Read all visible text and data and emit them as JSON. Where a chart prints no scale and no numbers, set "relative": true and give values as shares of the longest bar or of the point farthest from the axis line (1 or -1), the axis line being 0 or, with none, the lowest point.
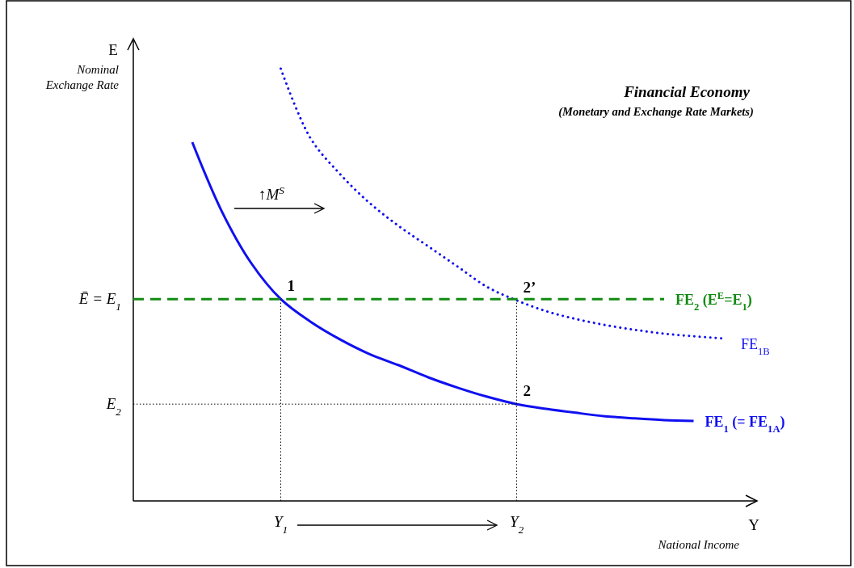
{
  "chart_data": {
    "type": "line",
    "relative": true,
    "title": "Financial Economy",
    "subtitle": "(Monetary and Exchange Rate Markets)",
    "xlabel": "Y",
    "ylabel": "E",
    "tick_labels": "x",
    "legend": false,
    "categories": [
      null,
      null,
      null,
      null,
      null,
      "Y$_{1}$",
      null,
      null,
      null,
      null,
      null,
      null,
      null,
      "Y$_{2}$",
      null,
      null,
      null,
      null,
      null,
      null,
      null,
      null
    ],
    "series": [
      {
        "name": "FE$_{1}$ (= FE$_{1A}$)",
        "color": "#1010f0",
        "line_style": "solid",
        "values": [
          null,
          null,
          0.83,
          0.67,
          0.55,
          0.467,
          0.415,
          0.374,
          0.34,
          0.314,
          0.286,
          0.262,
          0.241,
          0.224,
          0.213,
          0.204,
          0.196,
          0.191,
          0.187,
          0.185,
          null,
          null
        ]
      },
      {
        "name": "FE$_{1B}$",
        "color": "#1010f0",
        "line_style": "dotted",
        "values": [
          null,
          null,
          null,
          null,
          null,
          1.0,
          0.84,
          0.757,
          0.69,
          0.636,
          0.589,
          0.542,
          0.495,
          0.464,
          0.439,
          0.421,
          0.407,
          0.396,
          0.387,
          0.381,
          0.376,
          null
        ]
      },
      {
        "name": "FE$_{2}$ (E$^{E}$=E$_{1}$)",
        "color": "#138a13",
        "line_style": "dashed",
        "values": [
          0.467,
          0.467,
          0.467,
          0.467,
          0.467,
          0.467,
          0.467,
          0.467,
          0.467,
          0.467,
          0.467,
          0.467,
          0.467,
          0.467,
          0.467,
          0.467,
          0.467,
          0.467,
          0.467,
          null,
          null,
          null
        ]
      },
      {
        "color": "#000000",
        "line_style": "dotted",
        "x": [
          "Y$_{1}$",
          "Y$_{1}$"
        ],
        "values": [
          0,
          0.467
        ]
      },
      {
        "color": "#000000",
        "line_style": "dotted",
        "x": [
          "Y$_{2}$",
          "Y$_{2}$"
        ],
        "values": [
          0,
          0.464
        ]
      },
      {
        "color": "#000000",
        "line_style": "dotted",
        "values": [
          0.224,
          0.224,
          0.224,
          0.224,
          0.224,
          0.224,
          0.224,
          0.224,
          0.224,
          0.224,
          0.224,
          0.224,
          0.224,
          0.224,
          null,
          null,
          null,
          null,
          null,
          null,
          null,
          null
        ]
      }
    ],
    "annotations": [
      "Nominal Exchange Rate",
      "National Income",
      "↑M$^{S}$",
      "Ē = E$_{1}$",
      "E$_{2}$",
      {
        "text": "1",
        "x": "Y$_{1}$",
        "y": 0.467
      },
      {
        "text": "2",
        "x": "Y$_{2}$",
        "y": 0.224
      },
      {
        "text": "2’",
        "x": "Y$_{2}$",
        "y": 0.464
      }
    ]
  }
}
